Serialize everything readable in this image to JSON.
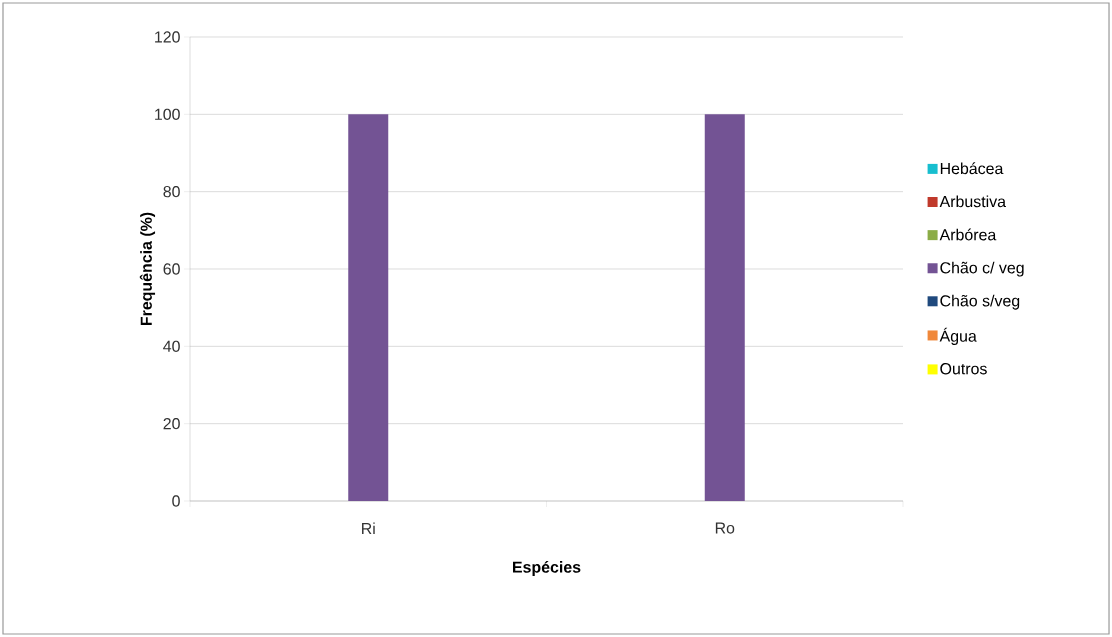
{
  "chart_data": {
    "type": "bar",
    "xlabel": "Espécies",
    "ylabel": "Frequência (%)",
    "categories": [
      "Ri",
      "Ro"
    ],
    "series": [
      {
        "name": "Hebácea",
        "color": "#17becf",
        "values": [
          0,
          0
        ]
      },
      {
        "name": "Arbustiva",
        "color": "#c0392b",
        "values": [
          0,
          0
        ]
      },
      {
        "name": "Arbórea",
        "color": "#8bac46",
        "values": [
          0,
          0
        ]
      },
      {
        "name": "Chão c/ veg",
        "color": "#735394",
        "values": [
          100,
          100
        ]
      },
      {
        "name": "Chão s/veg",
        "color": "#1f497d",
        "values": [
          0,
          0
        ]
      },
      {
        "name": "Água",
        "color": "#f0883a",
        "values": [
          0,
          0
        ]
      },
      {
        "name": "Outros",
        "color": "#ffff00",
        "values": [
          0,
          0
        ]
      }
    ],
    "ylim": [
      0,
      120
    ],
    "yticks": [
      0,
      20,
      40,
      60,
      80,
      100,
      120
    ],
    "grid": "y",
    "legend": "right"
  }
}
